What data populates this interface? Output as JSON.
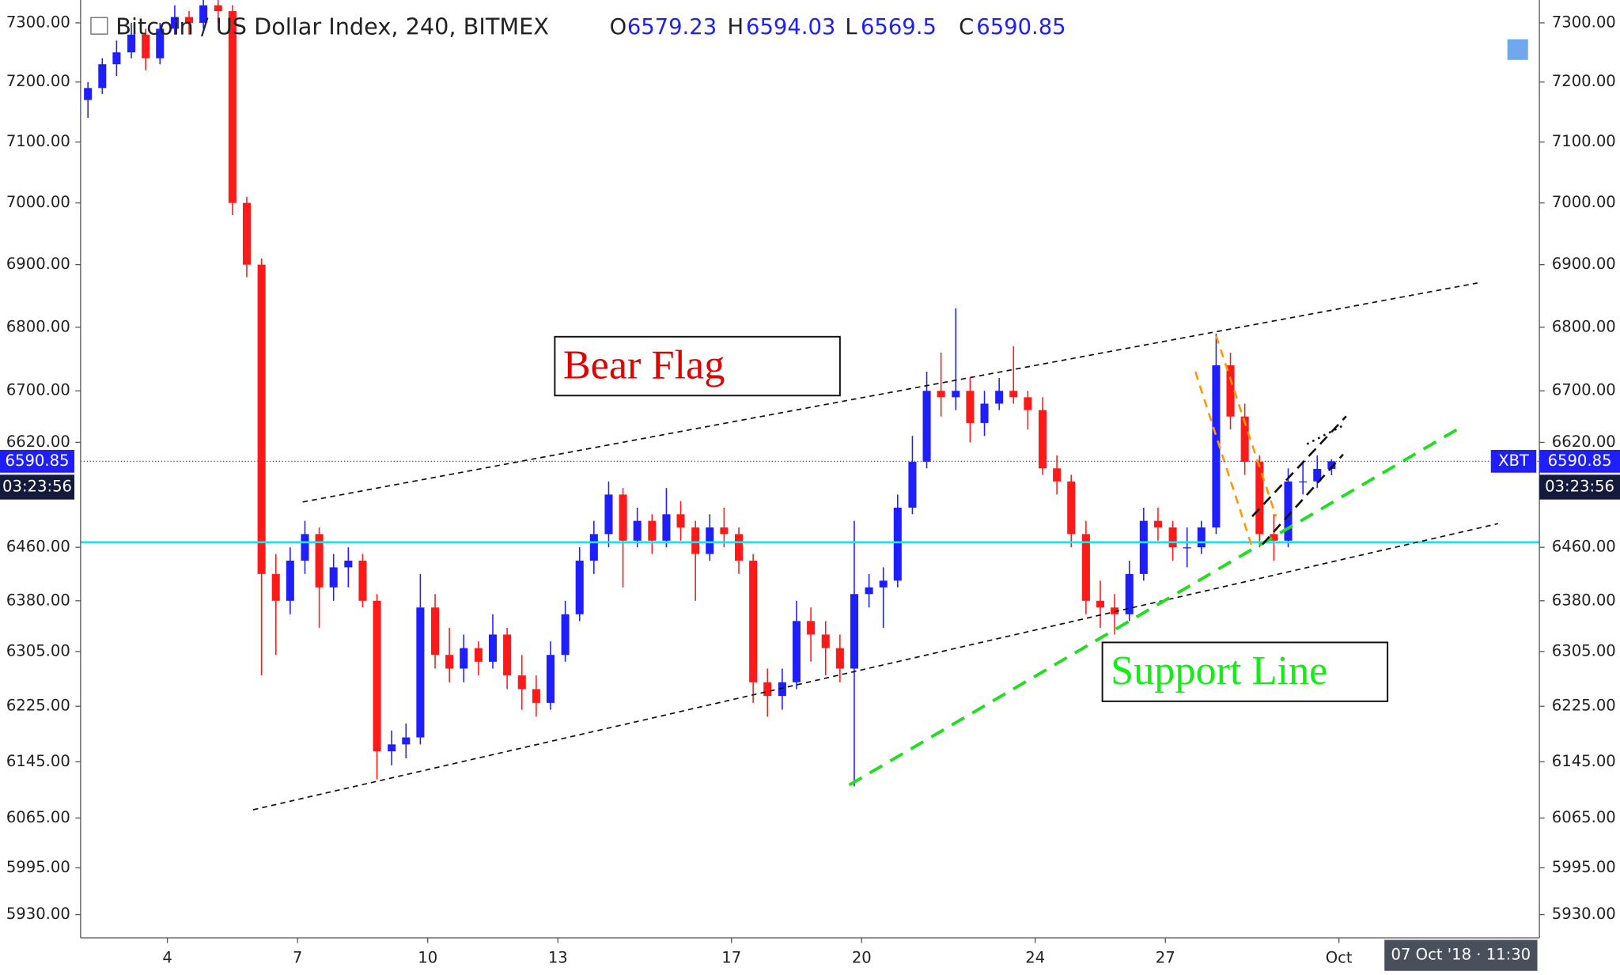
{
  "chart_data": {
    "type": "candlestick",
    "title": "Bitcoin / US Dollar Index, 240, BITMEX",
    "ohlc_labels": [
      "O",
      "H",
      "L",
      "C"
    ],
    "symbol_tag": "XBT",
    "countdown": "03:23:56",
    "crosshair_date": "07 Oct '18 · 11:30",
    "annotations": [
      "Bear Flag",
      "Support Line"
    ],
    "up_color": "#1e1eff",
    "down_color": "#ff1a1a",
    "log_scale": true,
    "grid": false,
    "xlim": [
      2,
      35.62
    ],
    "xticks": [
      4,
      7,
      10,
      13,
      17,
      20,
      24,
      27,
      {
        "value": 31,
        "label": "Oct"
      }
    ],
    "ylim": [
      5898,
      7339
    ],
    "yticks": [
      {
        "value": 5930,
        "label": "5930.00"
      },
      {
        "value": 5995,
        "label": "5995.00"
      },
      {
        "value": 6065,
        "label": "6065.00"
      },
      {
        "value": 6145,
        "label": "6145.00"
      },
      {
        "value": 6225,
        "label": "6225.00"
      },
      {
        "value": 6305,
        "label": "6305.00"
      },
      {
        "value": 6380,
        "label": "6380.00"
      },
      {
        "value": 6460,
        "label": "6460.00"
      },
      {
        "value": 6620,
        "label": "6620.00"
      },
      {
        "value": 6700,
        "label": "6700.00"
      },
      {
        "value": 6800,
        "label": "6800.00"
      },
      {
        "value": 6900,
        "label": "6900.00"
      },
      {
        "value": 7000,
        "label": "7000.00"
      },
      {
        "value": 7100,
        "label": "7100.00"
      },
      {
        "value": 7200,
        "label": "7200.00"
      },
      {
        "value": 7300,
        "label": "7300.00"
      }
    ],
    "x": [
      2.17,
      2.5,
      2.83,
      3.17,
      3.5,
      3.83,
      4.17,
      4.5,
      4.83,
      5.17,
      5.5,
      5.83,
      6.17,
      6.5,
      6.83,
      7.17,
      7.5,
      7.83,
      8.17,
      8.5,
      8.83,
      9.17,
      9.5,
      9.83,
      10.17,
      10.5,
      10.83,
      11.17,
      11.5,
      11.83,
      12.17,
      12.5,
      12.83,
      13.17,
      13.5,
      13.83,
      14.17,
      14.5,
      14.83,
      15.17,
      15.5,
      15.83,
      16.17,
      16.5,
      16.83,
      17.17,
      17.5,
      17.83,
      18.17,
      18.5,
      18.83,
      19.17,
      19.5,
      19.83,
      20.17,
      20.5,
      20.83,
      21.17,
      21.5,
      21.83,
      22.17,
      22.5,
      22.83,
      23.17,
      23.5,
      23.83,
      24.17,
      24.5,
      24.83,
      25.17,
      25.5,
      25.83,
      26.17,
      26.5,
      26.83,
      27.17,
      27.5,
      27.83,
      28.17,
      28.5,
      28.83,
      29.17,
      29.5,
      29.83,
      30.17,
      30.5,
      30.83
    ],
    "ohlc": [
      [
        7170,
        7200,
        7140,
        7190
      ],
      [
        7190,
        7240,
        7180,
        7230
      ],
      [
        7230,
        7270,
        7210,
        7250
      ],
      [
        7250,
        7300,
        7240,
        7280
      ],
      [
        7280,
        7290,
        7220,
        7240
      ],
      [
        7240,
        7300,
        7230,
        7290
      ],
      [
        7290,
        7330,
        7280,
        7310
      ],
      [
        7310,
        7320,
        7280,
        7300
      ],
      [
        7300,
        7340,
        7290,
        7330
      ],
      [
        7330,
        7340,
        7300,
        7320
      ],
      [
        7320,
        7330,
        6980,
        7000
      ],
      [
        7000,
        7010,
        6880,
        6900
      ],
      [
        6900,
        6910,
        6270,
        6420
      ],
      [
        6420,
        6450,
        6300,
        6380
      ],
      [
        6380,
        6460,
        6360,
        6440
      ],
      [
        6440,
        6500,
        6420,
        6480
      ],
      [
        6480,
        6490,
        6340,
        6400
      ],
      [
        6400,
        6450,
        6380,
        6430
      ],
      [
        6430,
        6460,
        6400,
        6440
      ],
      [
        6440,
        6450,
        6370,
        6380
      ],
      [
        6380,
        6390,
        6120,
        6160
      ],
      [
        6160,
        6190,
        6140,
        6170
      ],
      [
        6170,
        6200,
        6150,
        6180
      ],
      [
        6180,
        6420,
        6170,
        6370
      ],
      [
        6370,
        6390,
        6280,
        6300
      ],
      [
        6300,
        6340,
        6260,
        6280
      ],
      [
        6280,
        6330,
        6260,
        6310
      ],
      [
        6310,
        6320,
        6270,
        6290
      ],
      [
        6290,
        6360,
        6280,
        6330
      ],
      [
        6330,
        6340,
        6250,
        6270
      ],
      [
        6270,
        6300,
        6220,
        6250
      ],
      [
        6250,
        6270,
        6210,
        6230
      ],
      [
        6230,
        6320,
        6220,
        6300
      ],
      [
        6300,
        6380,
        6290,
        6360
      ],
      [
        6360,
        6460,
        6350,
        6440
      ],
      [
        6440,
        6500,
        6420,
        6480
      ],
      [
        6480,
        6560,
        6460,
        6540
      ],
      [
        6540,
        6550,
        6400,
        6470
      ],
      [
        6470,
        6520,
        6460,
        6500
      ],
      [
        6500,
        6510,
        6450,
        6470
      ],
      [
        6470,
        6550,
        6460,
        6510
      ],
      [
        6510,
        6530,
        6470,
        6490
      ],
      [
        6490,
        6500,
        6380,
        6450
      ],
      [
        6450,
        6510,
        6440,
        6490
      ],
      [
        6490,
        6520,
        6460,
        6480
      ],
      [
        6480,
        6490,
        6420,
        6440
      ],
      [
        6440,
        6450,
        6230,
        6260
      ],
      [
        6260,
        6280,
        6210,
        6240
      ],
      [
        6240,
        6280,
        6220,
        6260
      ],
      [
        6260,
        6380,
        6250,
        6350
      ],
      [
        6350,
        6370,
        6290,
        6330
      ],
      [
        6330,
        6350,
        6270,
        6310
      ],
      [
        6310,
        6330,
        6260,
        6280
      ],
      [
        6280,
        6500,
        6110,
        6390
      ],
      [
        6390,
        6420,
        6370,
        6400
      ],
      [
        6400,
        6430,
        6340,
        6410
      ],
      [
        6410,
        6540,
        6400,
        6520
      ],
      [
        6520,
        6630,
        6510,
        6590
      ],
      [
        6590,
        6730,
        6580,
        6700
      ],
      [
        6700,
        6760,
        6660,
        6690
      ],
      [
        6690,
        6830,
        6670,
        6700
      ],
      [
        6700,
        6720,
        6620,
        6650
      ],
      [
        6650,
        6700,
        6630,
        6680
      ],
      [
        6680,
        6720,
        6670,
        6700
      ],
      [
        6700,
        6770,
        6680,
        6690
      ],
      [
        6690,
        6700,
        6640,
        6670
      ],
      [
        6670,
        6690,
        6570,
        6580
      ],
      [
        6580,
        6600,
        6540,
        6560
      ],
      [
        6560,
        6570,
        6460,
        6480
      ],
      [
        6480,
        6500,
        6360,
        6380
      ],
      [
        6380,
        6410,
        6340,
        6370
      ],
      [
        6370,
        6390,
        6330,
        6360
      ],
      [
        6360,
        6440,
        6350,
        6420
      ],
      [
        6420,
        6520,
        6410,
        6500
      ],
      [
        6500,
        6520,
        6470,
        6490
      ],
      [
        6490,
        6500,
        6440,
        6460
      ],
      [
        6460,
        6490,
        6430,
        6460
      ],
      [
        6460,
        6500,
        6450,
        6490
      ],
      [
        6490,
        6790,
        6480,
        6740
      ],
      [
        6740,
        6760,
        6640,
        6660
      ],
      [
        6660,
        6680,
        6570,
        6590
      ],
      [
        6590,
        6600,
        6460,
        6480
      ],
      [
        6480,
        6510,
        6440,
        6470
      ],
      [
        6470,
        6580,
        6460,
        6560
      ],
      [
        6560,
        6590,
        6540,
        6560
      ],
      [
        6560,
        6600,
        6550,
        6579.23
      ],
      [
        6579.23,
        6594.03,
        6569.5,
        6590.85
      ]
    ]
  }
}
